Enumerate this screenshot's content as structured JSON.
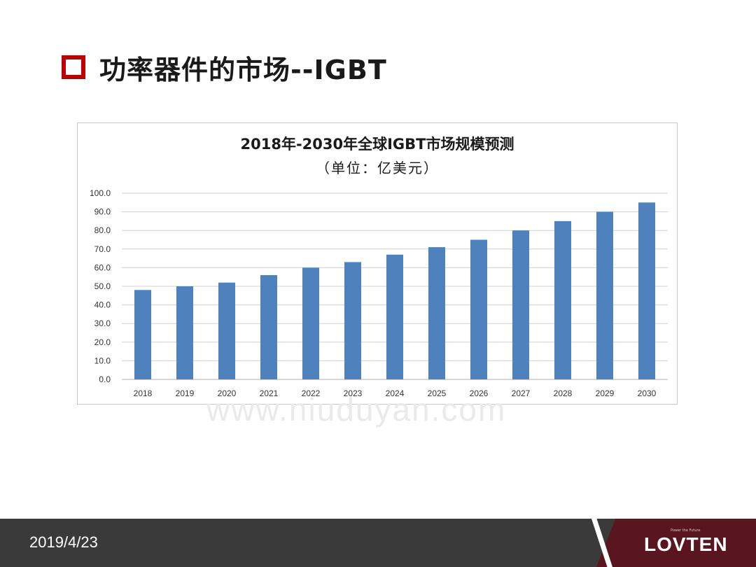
{
  "slide": {
    "title": "功率器件的市场--IGBT",
    "footer_date": "2019/4/23",
    "brand": "LOVTEN",
    "brand_tagline": "Power the Future",
    "watermark": "www.niuduyan.com"
  },
  "colors": {
    "title_marker": "#c00000",
    "bar": "#4f81bd",
    "footer": "#3a3a3a",
    "brand_panel": "#5a1620"
  },
  "chart_data": {
    "type": "bar",
    "title": "2018年-2030年全球IGBT市场规模预测",
    "subtitle": "（单位：亿美元）",
    "categories": [
      "2018",
      "2019",
      "2020",
      "2021",
      "2022",
      "2023",
      "2024",
      "2025",
      "2026",
      "2027",
      "2028",
      "2029",
      "2030"
    ],
    "values": [
      48,
      50,
      52,
      56,
      60,
      63,
      67,
      71,
      75,
      80,
      85,
      90,
      95
    ],
    "ylim": [
      0,
      100
    ],
    "yticks": [
      "0.0",
      "10.0",
      "20.0",
      "30.0",
      "40.0",
      "50.0",
      "60.0",
      "70.0",
      "80.0",
      "90.0",
      "100.0"
    ],
    "grid": true,
    "legend": "none"
  }
}
